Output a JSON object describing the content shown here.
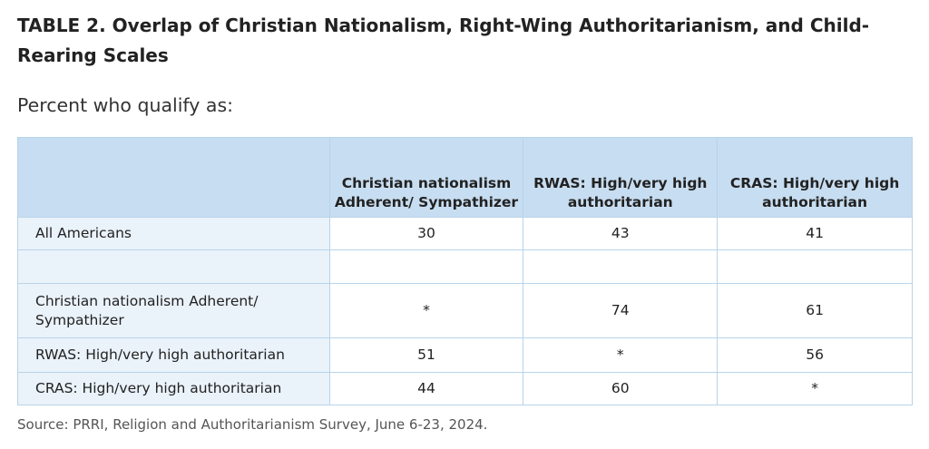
{
  "title": "TABLE 2.  Overlap of Christian Nationalism, Right-Wing Authoritarianism, and Child-Rearing Scales",
  "subtitle": "Percent who qualify as:",
  "table": {
    "headers": [
      "",
      "Christian nationalism Adherent/ Sympathizer",
      "RWAS: High/very high authoritarian",
      "CRAS: High/very high authoritarian"
    ],
    "rows": [
      {
        "label": "All Americans",
        "values": [
          "30",
          "43",
          "41"
        ]
      },
      {
        "label": "",
        "values": [
          "",
          "",
          ""
        ]
      },
      {
        "label": "Christian nationalism Adherent/ Sympathizer",
        "values": [
          "*",
          "74",
          "61"
        ]
      },
      {
        "label": "RWAS: High/very high authoritarian",
        "values": [
          "51",
          "*",
          "56"
        ]
      },
      {
        "label": "CRAS: High/very high authoritarian",
        "values": [
          "44",
          "60",
          "*"
        ]
      }
    ]
  },
  "source": "Source: PRRI, Religion and Authoritarianism Survey, June 6-23, 2024."
}
